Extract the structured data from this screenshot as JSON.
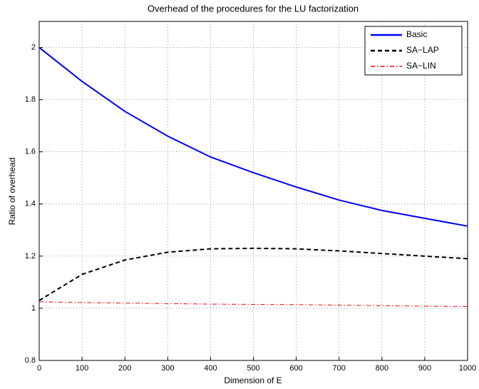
{
  "chart_data": {
    "type": "line",
    "title": "Overhead of the procedures for the LU factorization",
    "x_label": "Dimension of E",
    "y_label": "Ratio of overhead",
    "x": [
      0,
      100,
      200,
      300,
      400,
      500,
      600,
      700,
      800,
      900,
      1000
    ],
    "series": [
      {
        "name": "Basic",
        "color": "#0000ff",
        "dash": "solid",
        "values": [
          2,
          1.87,
          1.755,
          1.66,
          1.58,
          1.52,
          1.465,
          1.415,
          1.375,
          1.345,
          1.315
        ]
      },
      {
        "name": "SA−LAP",
        "color": "#000000",
        "dash": "dashed",
        "values": [
          1.03,
          1.13,
          1.185,
          1.215,
          1.228,
          1.23,
          1.228,
          1.22,
          1.21,
          1.2,
          1.19
        ]
      },
      {
        "name": "SA−LIN",
        "color": "#ff0000",
        "dash": "dashdot",
        "values": [
          1.025,
          1.022,
          1.02,
          1.018,
          1.016,
          1.015,
          1.014,
          1.012,
          1.01,
          1.008,
          1.007
        ]
      }
    ],
    "xlim": [
      0,
      1000
    ],
    "xticks": [
      0,
      100,
      200,
      300,
      400,
      500,
      600,
      700,
      800,
      900,
      1000
    ],
    "ylim": [
      0.8,
      2.1
    ],
    "yticks": [
      0.8,
      1,
      1.2,
      1.4,
      1.6,
      1.8,
      2
    ],
    "grid": true,
    "legend": "upper right"
  }
}
